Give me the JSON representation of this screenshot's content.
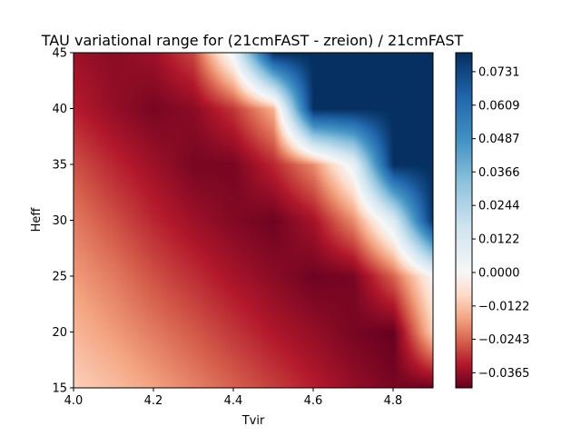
{
  "chart_data": {
    "type": "heatmap",
    "title": "TAU variational range for (21cmFAST - zreion) / 21cmFAST",
    "xlabel": "Tvir",
    "ylabel": "Heff",
    "xlim": [
      4.0,
      4.9
    ],
    "ylim": [
      15,
      45
    ],
    "x_ticks": [
      "4.0",
      "4.2",
      "4.4",
      "4.6",
      "4.8"
    ],
    "y_ticks": [
      "15",
      "20",
      "25",
      "30",
      "35",
      "40",
      "45"
    ],
    "colormap": "RdBu",
    "colorbar": {
      "vmin": -0.042,
      "vmax": 0.08,
      "ticks": [
        {
          "value": -0.0365,
          "label": "−0.0365"
        },
        {
          "value": -0.0243,
          "label": "−0.0243"
        },
        {
          "value": -0.0122,
          "label": "−0.0122"
        },
        {
          "value": 0.0,
          "label": "0.0000"
        },
        {
          "value": 0.0122,
          "label": "0.0122"
        },
        {
          "value": 0.0244,
          "label": "0.0244"
        },
        {
          "value": 0.0366,
          "label": "0.0366"
        },
        {
          "value": 0.0487,
          "label": "0.0487"
        },
        {
          "value": 0.0609,
          "label": "0.0609"
        },
        {
          "value": 0.0731,
          "label": "0.0731"
        }
      ]
    },
    "grid": false,
    "z_grid": {
      "x": [
        4.0,
        4.1,
        4.2,
        4.3,
        4.4,
        4.5,
        4.6,
        4.7,
        4.8,
        4.9
      ],
      "y": [
        15,
        20,
        25,
        30,
        35,
        40,
        45
      ],
      "z": [
        [
          -0.01,
          -0.013,
          -0.017,
          -0.021,
          -0.025,
          -0.029,
          -0.033,
          -0.037,
          -0.04,
          -0.042
        ],
        [
          -0.014,
          -0.018,
          -0.022,
          -0.026,
          -0.03,
          -0.034,
          -0.037,
          -0.04,
          -0.042,
          -0.01
        ],
        [
          -0.018,
          -0.022,
          -0.027,
          -0.031,
          -0.035,
          -0.038,
          -0.041,
          -0.04,
          -0.025,
          0.0
        ],
        [
          -0.022,
          -0.027,
          -0.032,
          -0.036,
          -0.039,
          -0.041,
          -0.035,
          -0.02,
          0.01,
          0.08
        ],
        [
          -0.027,
          -0.032,
          -0.036,
          -0.04,
          -0.04,
          -0.032,
          -0.02,
          0.005,
          0.08,
          0.08
        ],
        [
          -0.033,
          -0.037,
          -0.04,
          -0.038,
          -0.03,
          -0.015,
          0.08,
          0.08,
          0.08,
          0.08
        ],
        [
          -0.036,
          -0.038,
          -0.036,
          -0.028,
          0.005,
          0.08,
          0.08,
          0.08,
          0.08,
          0.08
        ]
      ]
    }
  }
}
